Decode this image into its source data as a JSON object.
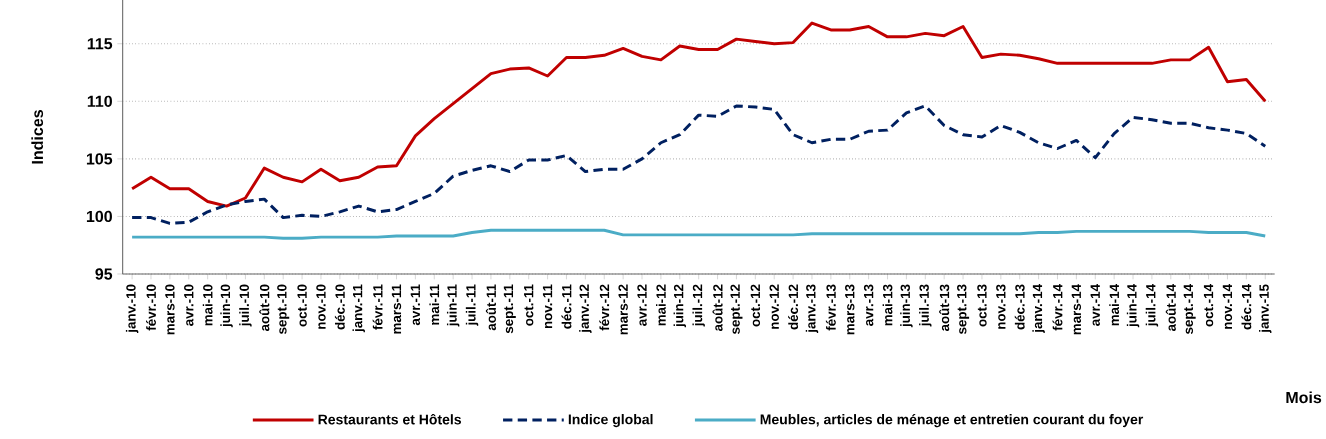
{
  "chart_data": {
    "type": "line",
    "xlabel": "Mois",
    "ylabel": "Indices",
    "categories": [
      "janv.-10",
      "févr.-10",
      "mars-10",
      "avr.-10",
      "mai-10",
      "juin-10",
      "juil.-10",
      "août-10",
      "sept.-10",
      "oct.-10",
      "nov.-10",
      "déc.-10",
      "janv.-11",
      "févr.-11",
      "mars-11",
      "avr.-11",
      "mai-11",
      "juin-11",
      "juil.-11",
      "août-11",
      "sept.-11",
      "oct.-11",
      "nov.-11",
      "déc.-11",
      "janv.-12",
      "févr.-12",
      "mars-12",
      "avr.-12",
      "mai-12",
      "juin-12",
      "juil.-12",
      "août-12",
      "sept.-12",
      "oct.-12",
      "nov.-12",
      "déc.-12",
      "janv.-13",
      "févr.-13",
      "mars-13",
      "avr.-13",
      "mai-13",
      "juin-13",
      "juil.-13",
      "août-13",
      "sept.-13",
      "oct.-13",
      "nov.-13",
      "déc.-13",
      "janv.-14",
      "févr.-14",
      "mars-14",
      "avr.-14",
      "mai-14",
      "juin-14",
      "juil.-14",
      "août-14",
      "sept.-14",
      "oct.-14",
      "nov.-14",
      "déc.-14",
      "janv.-15"
    ],
    "series": [
      {
        "name": "Restaurants et Hôtels",
        "color": "#c00000",
        "line_style": "solid",
        "values": [
          102.4,
          103.4,
          102.4,
          102.4,
          101.3,
          100.9,
          101.6,
          104.2,
          103.4,
          103.0,
          104.1,
          103.1,
          103.4,
          104.3,
          104.4,
          107.0,
          108.5,
          109.8,
          111.1,
          112.4,
          112.8,
          112.9,
          112.2,
          113.8,
          113.8,
          114.0,
          114.6,
          113.9,
          113.6,
          114.8,
          114.5,
          114.5,
          115.4,
          115.2,
          115.0,
          115.1,
          116.8,
          116.2,
          116.2,
          116.5,
          115.6,
          115.6,
          115.9,
          115.7,
          116.5,
          113.8,
          114.1,
          114.0,
          113.7,
          113.3,
          113.3,
          113.3,
          113.3,
          113.3,
          113.3,
          113.6,
          113.6,
          114.7,
          111.7,
          111.9,
          110.0
        ]
      },
      {
        "name": "Indice global",
        "color": "#002060",
        "line_style": "dashed",
        "values": [
          99.9,
          99.9,
          99.4,
          99.5,
          100.4,
          101.0,
          101.3,
          101.5,
          99.9,
          100.1,
          100.0,
          100.4,
          100.9,
          100.4,
          100.6,
          101.3,
          102.0,
          103.5,
          104.0,
          104.4,
          103.9,
          104.9,
          104.9,
          105.3,
          103.9,
          104.1,
          104.1,
          105.0,
          106.4,
          107.1,
          108.8,
          108.7,
          109.6,
          109.5,
          109.3,
          107.1,
          106.4,
          106.7,
          106.7,
          107.4,
          107.5,
          109.0,
          109.6,
          107.9,
          107.1,
          106.9,
          107.9,
          107.3,
          106.4,
          105.9,
          106.6,
          105.1,
          107.2,
          108.6,
          108.4,
          108.1,
          108.1,
          107.7,
          107.5,
          107.2,
          106.1
        ]
      },
      {
        "name": "Meubles, articles de ménage et entretien courant du foyer",
        "color": "#4bacc6",
        "line_style": "solid",
        "values": [
          98.2,
          98.2,
          98.2,
          98.2,
          98.2,
          98.2,
          98.2,
          98.2,
          98.1,
          98.1,
          98.2,
          98.2,
          98.2,
          98.2,
          98.3,
          98.3,
          98.3,
          98.3,
          98.6,
          98.8,
          98.8,
          98.8,
          98.8,
          98.8,
          98.8,
          98.8,
          98.4,
          98.4,
          98.4,
          98.4,
          98.4,
          98.4,
          98.4,
          98.4,
          98.4,
          98.4,
          98.5,
          98.5,
          98.5,
          98.5,
          98.5,
          98.5,
          98.5,
          98.5,
          98.5,
          98.5,
          98.5,
          98.5,
          98.6,
          98.6,
          98.7,
          98.7,
          98.7,
          98.7,
          98.7,
          98.7,
          98.7,
          98.6,
          98.6,
          98.6,
          98.3
        ]
      }
    ],
    "ylim": [
      95,
      118.8
    ],
    "yticks": [
      95,
      100,
      105,
      110,
      115
    ],
    "grid": "y",
    "legend": "bottom"
  }
}
